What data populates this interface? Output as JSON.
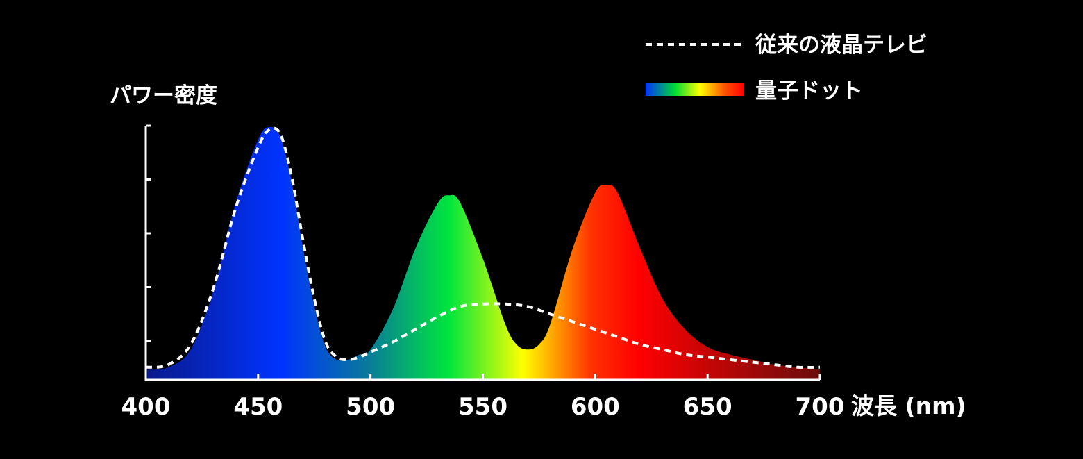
{
  "chart_data": {
    "type": "area",
    "ylabel": "パワー密度",
    "xlabel": "波長 (nm)",
    "x_ticks": [
      400,
      450,
      500,
      550,
      600,
      650,
      700
    ],
    "x_tick_labels": [
      "400",
      "450",
      "500",
      "550",
      "600",
      "650",
      "700"
    ],
    "xlim": [
      400,
      700
    ],
    "ylim": [
      0,
      1
    ],
    "grid": false,
    "legend_position": "top-right",
    "series": [
      {
        "name": "従来の液晶テレビ",
        "style": "dashed",
        "color": "#ffffff",
        "x": [
          400,
          410,
          420,
          430,
          440,
          450,
          455,
          460,
          465,
          470,
          475,
          480,
          485,
          490,
          495,
          500,
          510,
          520,
          530,
          540,
          550,
          560,
          570,
          580,
          590,
          600,
          610,
          620,
          630,
          640,
          650,
          660,
          670,
          680,
          690,
          700
        ],
        "values": [
          0.05,
          0.06,
          0.14,
          0.36,
          0.68,
          0.92,
          0.99,
          0.97,
          0.8,
          0.55,
          0.32,
          0.15,
          0.09,
          0.08,
          0.09,
          0.11,
          0.15,
          0.2,
          0.25,
          0.29,
          0.3,
          0.3,
          0.29,
          0.26,
          0.23,
          0.2,
          0.17,
          0.14,
          0.12,
          0.1,
          0.09,
          0.08,
          0.07,
          0.06,
          0.05,
          0.05
        ]
      },
      {
        "name": "量子ドット",
        "style": "gradient-fill",
        "x": [
          400,
          410,
          420,
          430,
          440,
          450,
          455,
          460,
          465,
          470,
          475,
          480,
          485,
          490,
          495,
          500,
          510,
          520,
          530,
          535,
          540,
          550,
          560,
          565,
          570,
          575,
          580,
          590,
          600,
          605,
          610,
          620,
          630,
          640,
          650,
          660,
          670,
          680,
          690,
          700
        ],
        "values": [
          0.04,
          0.05,
          0.12,
          0.35,
          0.7,
          0.95,
          1.0,
          0.96,
          0.78,
          0.52,
          0.29,
          0.13,
          0.08,
          0.08,
          0.1,
          0.12,
          0.28,
          0.52,
          0.7,
          0.73,
          0.7,
          0.48,
          0.22,
          0.14,
          0.12,
          0.14,
          0.22,
          0.52,
          0.74,
          0.77,
          0.74,
          0.52,
          0.32,
          0.2,
          0.13,
          0.1,
          0.08,
          0.06,
          0.05,
          0.04
        ]
      }
    ],
    "gradient_colors": [
      "#0a1a8a",
      "#0033ff",
      "#00cc44",
      "#ffff00",
      "#ff3300",
      "#ff0000",
      "#6a0d0d"
    ]
  }
}
